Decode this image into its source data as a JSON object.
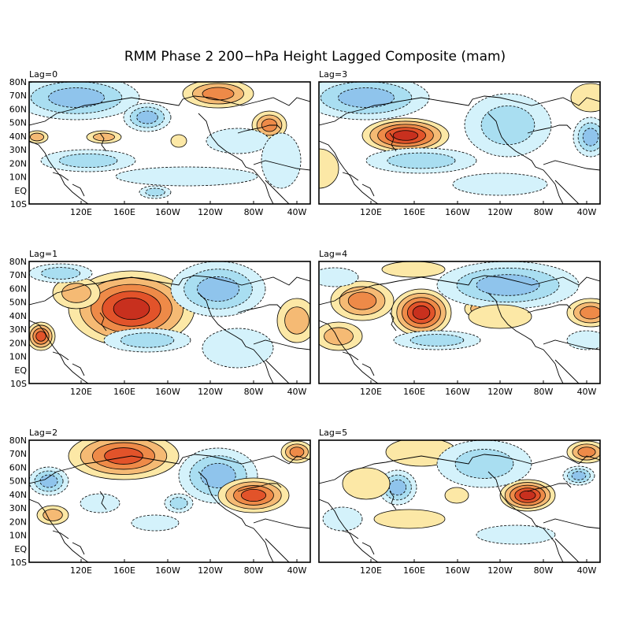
{
  "figure": {
    "title": "RMM Phase 2 200−hPa Height Lagged Composite (mam)"
  },
  "axes": {
    "lat_ticks": [
      "80N",
      "70N",
      "60N",
      "50N",
      "40N",
      "30N",
      "20N",
      "10N",
      "EQ",
      "10S"
    ],
    "lon_ticks": [
      "120E",
      "160E",
      "160W",
      "120W",
      "80W",
      "40W"
    ]
  },
  "panels": [
    {
      "label": "Lag=0"
    },
    {
      "label": "Lag=3"
    },
    {
      "label": "Lag=1"
    },
    {
      "label": "Lag=4"
    },
    {
      "label": "Lag=2"
    },
    {
      "label": "Lag=5"
    }
  ],
  "colors": {
    "neg1": "#d4f2fb",
    "neg2": "#a9def1",
    "neg3": "#8fc4ec",
    "neg4": "#5f9ee0",
    "pos1": "#fce8a6",
    "pos2": "#f5ba74",
    "pos3": "#ee8a48",
    "pos4": "#e2532a",
    "pos5": "#c8301e",
    "coast": "#000000"
  }
}
